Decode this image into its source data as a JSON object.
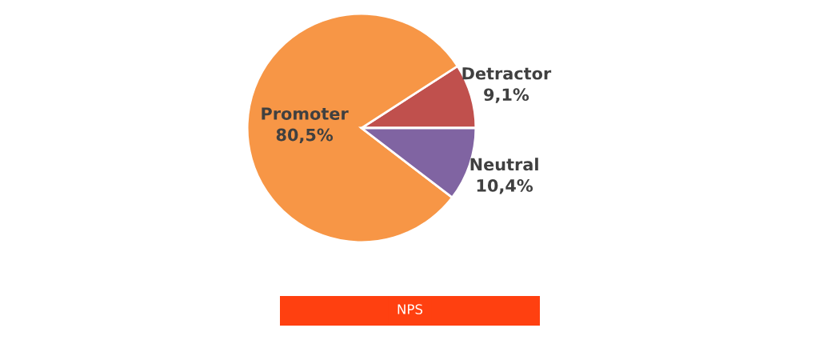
{
  "chart_data": {
    "type": "pie",
    "title": "NPS",
    "categories": [
      "Detractor",
      "Promoter",
      "Neutral"
    ],
    "values": [
      9.1,
      80.5,
      10.4
    ],
    "value_labels": [
      "9,1%",
      "80,5%",
      "10,4%"
    ],
    "colors": [
      "#c0504d",
      "#f79646",
      "#8064a2"
    ],
    "legend": false
  }
}
